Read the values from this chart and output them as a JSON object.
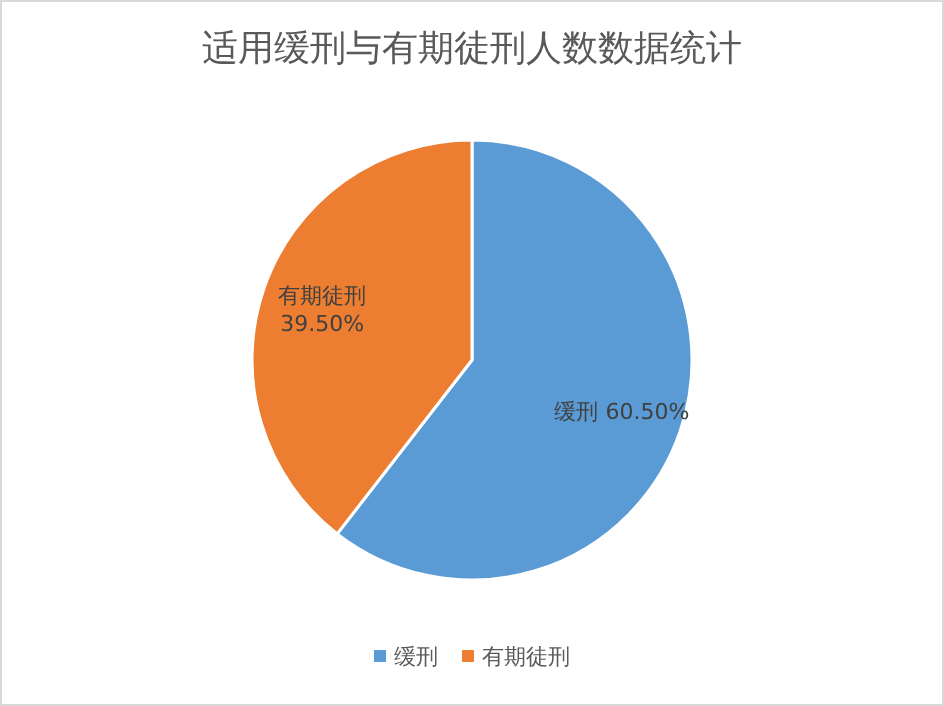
{
  "chart_data": {
    "type": "pie",
    "title": "适用缓刑与有期徒刑人数数据统计",
    "categories": [
      "缓刑",
      "有期徒刑"
    ],
    "values": [
      60.5,
      39.5
    ],
    "colors": [
      "#5b9bd5",
      "#ed7d31"
    ],
    "value_labels": [
      "60.50%",
      "39.50%"
    ],
    "legend": "bottom"
  }
}
